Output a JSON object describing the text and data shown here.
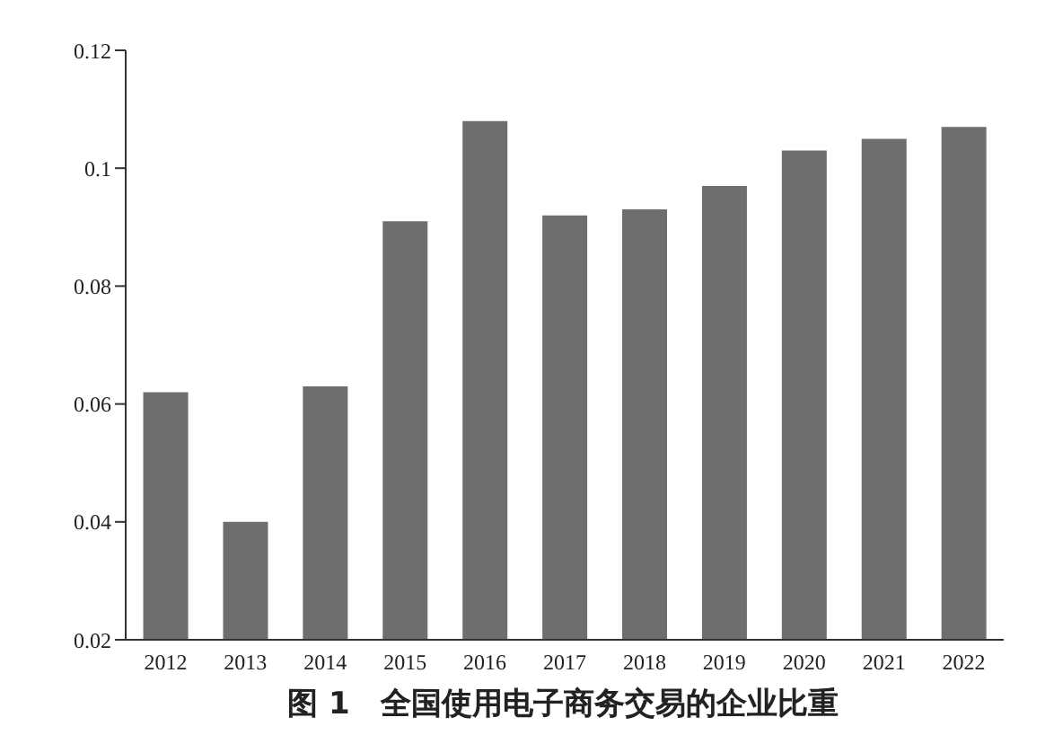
{
  "chart_data": {
    "type": "bar",
    "title": "图 1　全国使用电子商务交易的企业比重",
    "categories": [
      "2012",
      "2013",
      "2014",
      "2015",
      "2016",
      "2017",
      "2018",
      "2019",
      "2020",
      "2021",
      "2022"
    ],
    "values": [
      0.062,
      0.04,
      0.063,
      0.091,
      0.108,
      0.092,
      0.093,
      0.097,
      0.103,
      0.105,
      0.107
    ],
    "color": "#6e6e6e",
    "ylim": [
      0.02,
      0.12
    ],
    "yticks": [
      0.02,
      0.04,
      0.06,
      0.08,
      0.1,
      0.12
    ],
    "grid": false
  }
}
